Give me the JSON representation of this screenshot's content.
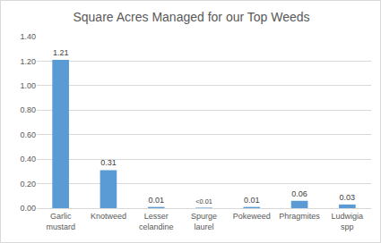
{
  "chart_data": {
    "type": "bar",
    "title": "Square Acres Managed for our Top Weeds",
    "categories": [
      "Garlic mustard",
      "Knotweed",
      "Lesser celandine",
      "Spurge laurel",
      "Pokeweed",
      "Phragmites",
      "Ludwigia spp"
    ],
    "values": [
      1.21,
      0.31,
      0.01,
      0.004,
      0.01,
      0.06,
      0.03
    ],
    "value_labels": [
      "1.21",
      "0.31",
      "0.01",
      "<0.01",
      "0.01",
      "0.06",
      "0.03"
    ],
    "data_labels": true,
    "color": "#5b9bd5",
    "ylim": [
      0,
      1.4
    ],
    "yticks": [
      {
        "value": 0,
        "label": "0.00"
      },
      {
        "value": 0.2,
        "label": "0.20"
      },
      {
        "value": 0.4,
        "label": "0.40"
      },
      {
        "value": 0.6,
        "label": "0.60"
      },
      {
        "value": 0.8,
        "label": "0.80"
      },
      {
        "value": 1.0,
        "label": "1.00"
      },
      {
        "value": 1.2,
        "label": "1.20"
      },
      {
        "value": 1.4,
        "label": "1.40"
      }
    ],
    "grid": true
  }
}
